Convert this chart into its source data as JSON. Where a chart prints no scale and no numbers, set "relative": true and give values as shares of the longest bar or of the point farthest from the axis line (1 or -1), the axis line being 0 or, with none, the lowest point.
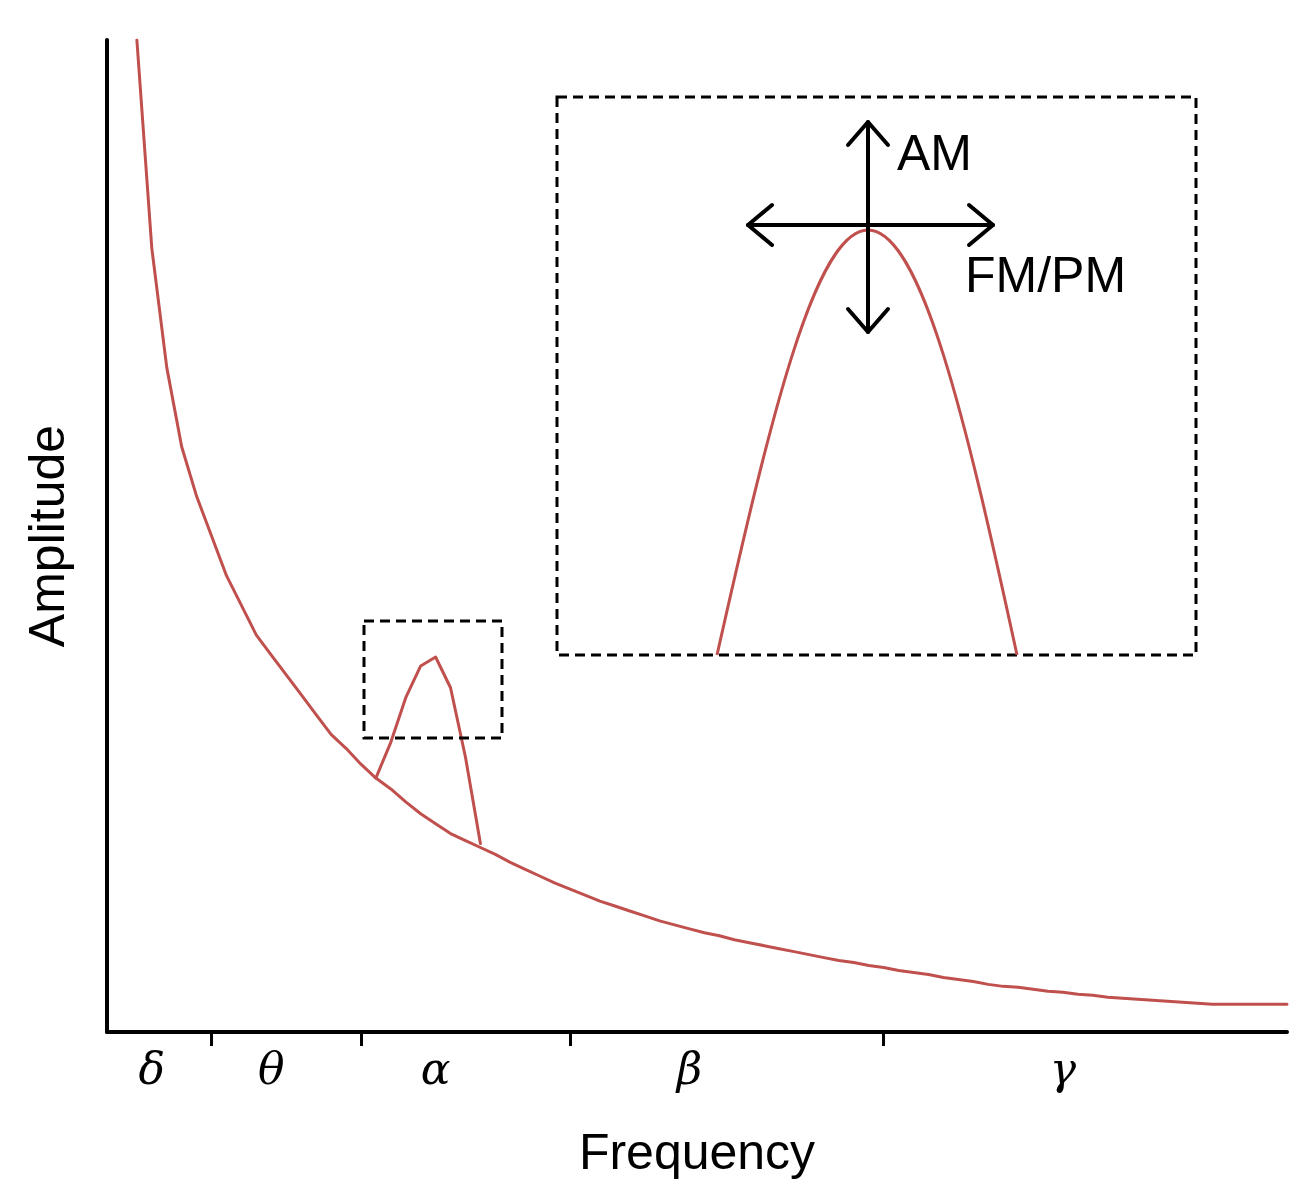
{
  "chart_data": {
    "type": "line",
    "relative": true,
    "xlabel": "Frequency",
    "ylabel": "Amplitude",
    "marker": "none",
    "categories": [
      null,
      null,
      null,
      "δ",
      null,
      null,
      null,
      null,
      null,
      null,
      null,
      "θ",
      null,
      null,
      null,
      null,
      null,
      null,
      null,
      null,
      null,
      null,
      "α",
      null,
      null,
      null,
      null,
      null,
      null,
      null,
      null,
      null,
      null,
      null,
      null,
      null,
      null,
      null,
      null,
      "β",
      null,
      null,
      null,
      null,
      null,
      null,
      null,
      null,
      null,
      null,
      null,
      null,
      null,
      null,
      null,
      null,
      null,
      null,
      null,
      null,
      null,
      null,
      null,
      null,
      "γ",
      null,
      null,
      null,
      null,
      null,
      null,
      null,
      null,
      null,
      null,
      null,
      null,
      null,
      null,
      null
    ],
    "series": [
      {
        "color": "#c0504d",
        "values": [
          null,
          null,
          1,
          0.79,
          0.67,
          0.59,
          0.54,
          0.5,
          0.46,
          0.43,
          0.4,
          0.38,
          0.36,
          0.34,
          0.32,
          0.3,
          0.286,
          0.27,
          0.256,
          0.245,
          0.232,
          0.22,
          0.21,
          0.2,
          0.193,
          0.186,
          0.179,
          0.171,
          0.164,
          0.157,
          0.15,
          0.144,
          0.138,
          0.132,
          0.127,
          0.122,
          0.117,
          0.112,
          0.108,
          0.104,
          0.1,
          0.097,
          0.093,
          0.09,
          0.087,
          0.084,
          0.081,
          0.078,
          0.075,
          0.072,
          0.07,
          0.067,
          0.065,
          0.062,
          0.06,
          0.058,
          0.055,
          0.053,
          0.051,
          0.048,
          0.046,
          0.045,
          0.043,
          0.041,
          0.04,
          0.038,
          0.037,
          0.035,
          0.034,
          0.033,
          0.032,
          0.031,
          0.03,
          0.029,
          0.028,
          0.028,
          0.028,
          0.028,
          0.028,
          0.028
        ]
      },
      {
        "color": "#c0504d",
        "values": [
          null,
          null,
          null,
          null,
          null,
          null,
          null,
          null,
          null,
          null,
          null,
          null,
          null,
          null,
          null,
          null,
          null,
          null,
          0.256,
          0.292,
          0.337,
          0.369,
          0.378,
          0.347,
          0.277,
          0.19,
          null,
          null,
          null,
          null,
          null,
          null,
          null,
          null,
          null,
          null,
          null,
          null,
          null,
          null,
          null,
          null,
          null,
          null,
          null,
          null,
          null,
          null,
          null,
          null,
          null,
          null,
          null,
          null,
          null,
          null,
          null,
          null,
          null,
          null,
          null,
          null,
          null,
          null,
          null,
          null,
          null,
          null,
          null,
          null,
          null,
          null,
          null,
          null,
          null,
          null,
          null,
          null,
          null,
          null
        ]
      }
    ],
    "annotations": [
      "AM",
      "FM/PM"
    ]
  }
}
